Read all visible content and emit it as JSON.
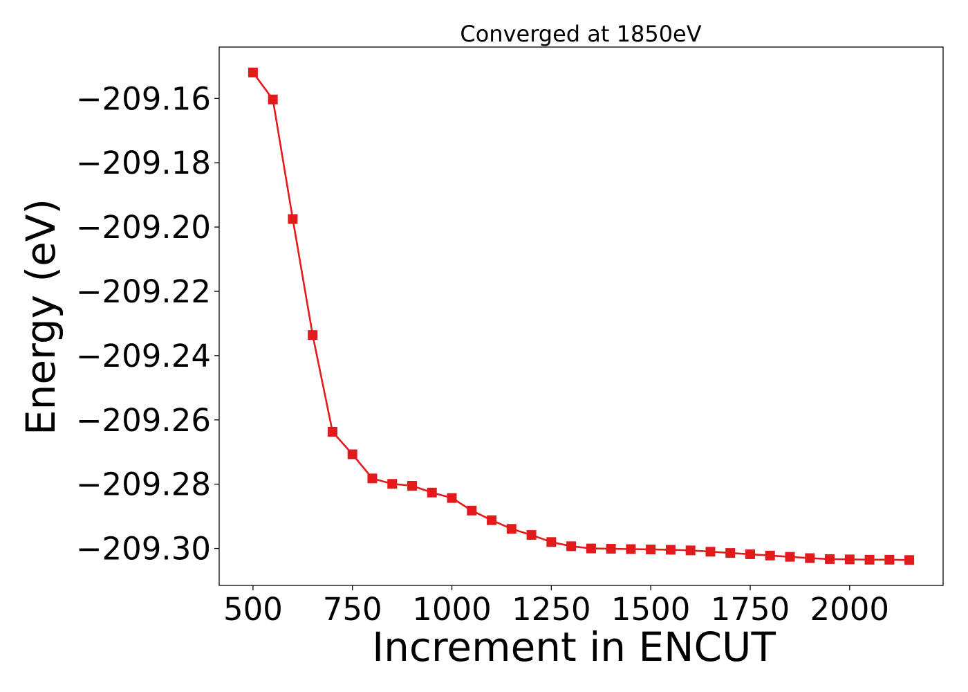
{
  "chart_data": {
    "type": "line",
    "title": "Converged at 1850eV",
    "xlabel": "Increment in ENCUT",
    "ylabel": "Energy (eV)",
    "xlim": [
      415,
      2235
    ],
    "ylim": [
      -209.3115,
      -209.144
    ],
    "x_ticks": [
      500,
      750,
      1000,
      1250,
      1500,
      1750,
      2000
    ],
    "x_tick_labels": [
      "500",
      "750",
      "1000",
      "1250",
      "1500",
      "1750",
      "2000"
    ],
    "y_ticks": [
      -209.16,
      -209.18,
      -209.2,
      -209.22,
      -209.24,
      -209.26,
      -209.28,
      -209.3
    ],
    "y_tick_labels": [
      "−209.16",
      "−209.18",
      "−209.20",
      "−209.22",
      "−209.24",
      "−209.26",
      "−209.28",
      "−209.30"
    ],
    "grid": false,
    "series": [
      {
        "color": "#e31a1c",
        "marker": "square",
        "x": [
          500,
          550,
          600,
          650,
          700,
          750,
          800,
          850,
          900,
          950,
          1000,
          1050,
          1100,
          1150,
          1200,
          1250,
          1300,
          1350,
          1400,
          1450,
          1500,
          1550,
          1600,
          1650,
          1700,
          1750,
          1800,
          1850,
          1900,
          1950,
          2000,
          2050,
          2100,
          2150
        ],
        "y": [
          -209.1519,
          -209.1603,
          -209.1975,
          -209.2336,
          -209.2637,
          -209.2707,
          -209.2782,
          -209.2799,
          -209.2805,
          -209.2826,
          -209.2843,
          -209.2882,
          -209.2912,
          -209.2939,
          -209.2958,
          -209.298,
          -209.2993,
          -209.3,
          -209.3001,
          -209.3002,
          -209.3003,
          -209.3004,
          -209.3006,
          -209.301,
          -209.3014,
          -209.3018,
          -209.3022,
          -209.3026,
          -209.303,
          -209.3033,
          -209.3034,
          -209.3035,
          -209.3035,
          -209.3036
        ]
      }
    ]
  }
}
